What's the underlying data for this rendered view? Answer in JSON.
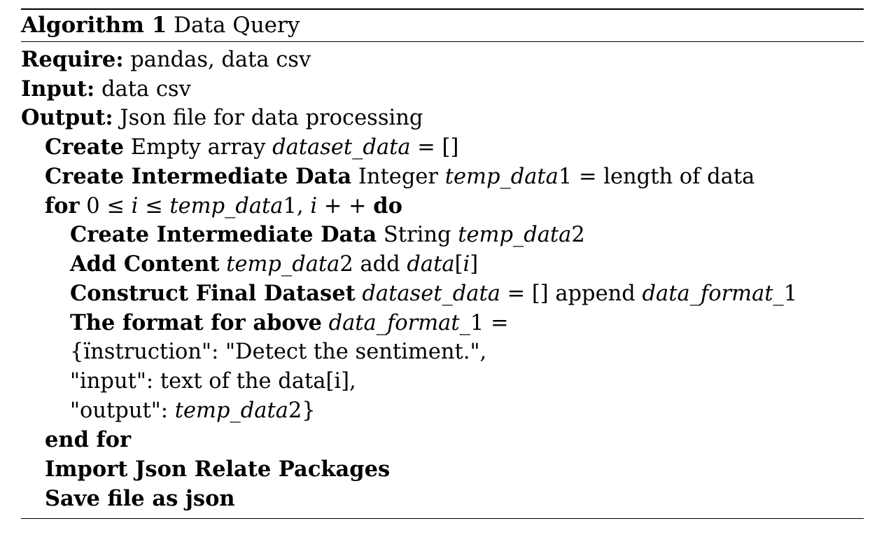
{
  "algorithm": {
    "title_label": "Algorithm 1",
    "title_text": "Data Query",
    "require_label": "Require:",
    "require_text": "pandas, data csv",
    "input_label": "Input:",
    "input_text": "data csv",
    "output_label": "Output:",
    "output_text": "Json file for data processing",
    "steps": [
      {
        "kw": "Create",
        "pre": "Empty array",
        "math": "dataset_data",
        "post": "= []"
      },
      {
        "kw": "Create Intermediate Data",
        "pre": "Integer",
        "math": "temp_data",
        "post": "1 = length of data"
      },
      {
        "kw": "for",
        "pre": "0 ≤",
        "math": "i",
        "post": "≤",
        "math2": "temp_data",
        "post2": "1,",
        "math3": "i",
        "post3": "+ +",
        "kw2": "do"
      },
      {
        "kw": "Create Intermediate Data",
        "pre": "String",
        "math": "temp_data",
        "post": "2"
      },
      {
        "kw": "Add Content",
        "math": "temp_data",
        "post": "2 add",
        "math2": "data",
        "post2": "[",
        "math3": "i",
        "post3": "]"
      },
      {
        "kw": "Construct Final Dataset",
        "math": "dataset_data",
        "post": "= [] append",
        "math2": "data_format_",
        "post2": "1"
      },
      {
        "kw": "The format for above",
        "math": "data_format_",
        "post": "1 ="
      },
      {
        "text": "{ïnstruction\": \"Detect the sentiment.\","
      },
      {
        "text": "\"input\": text of the data[i],"
      },
      {
        "text": "\"output\":",
        "math": "temp_data",
        "post": "2}"
      },
      {
        "kw": "end for"
      },
      {
        "kw": "Import Json Relate Packages"
      },
      {
        "kw": "Save file as json"
      }
    ]
  }
}
